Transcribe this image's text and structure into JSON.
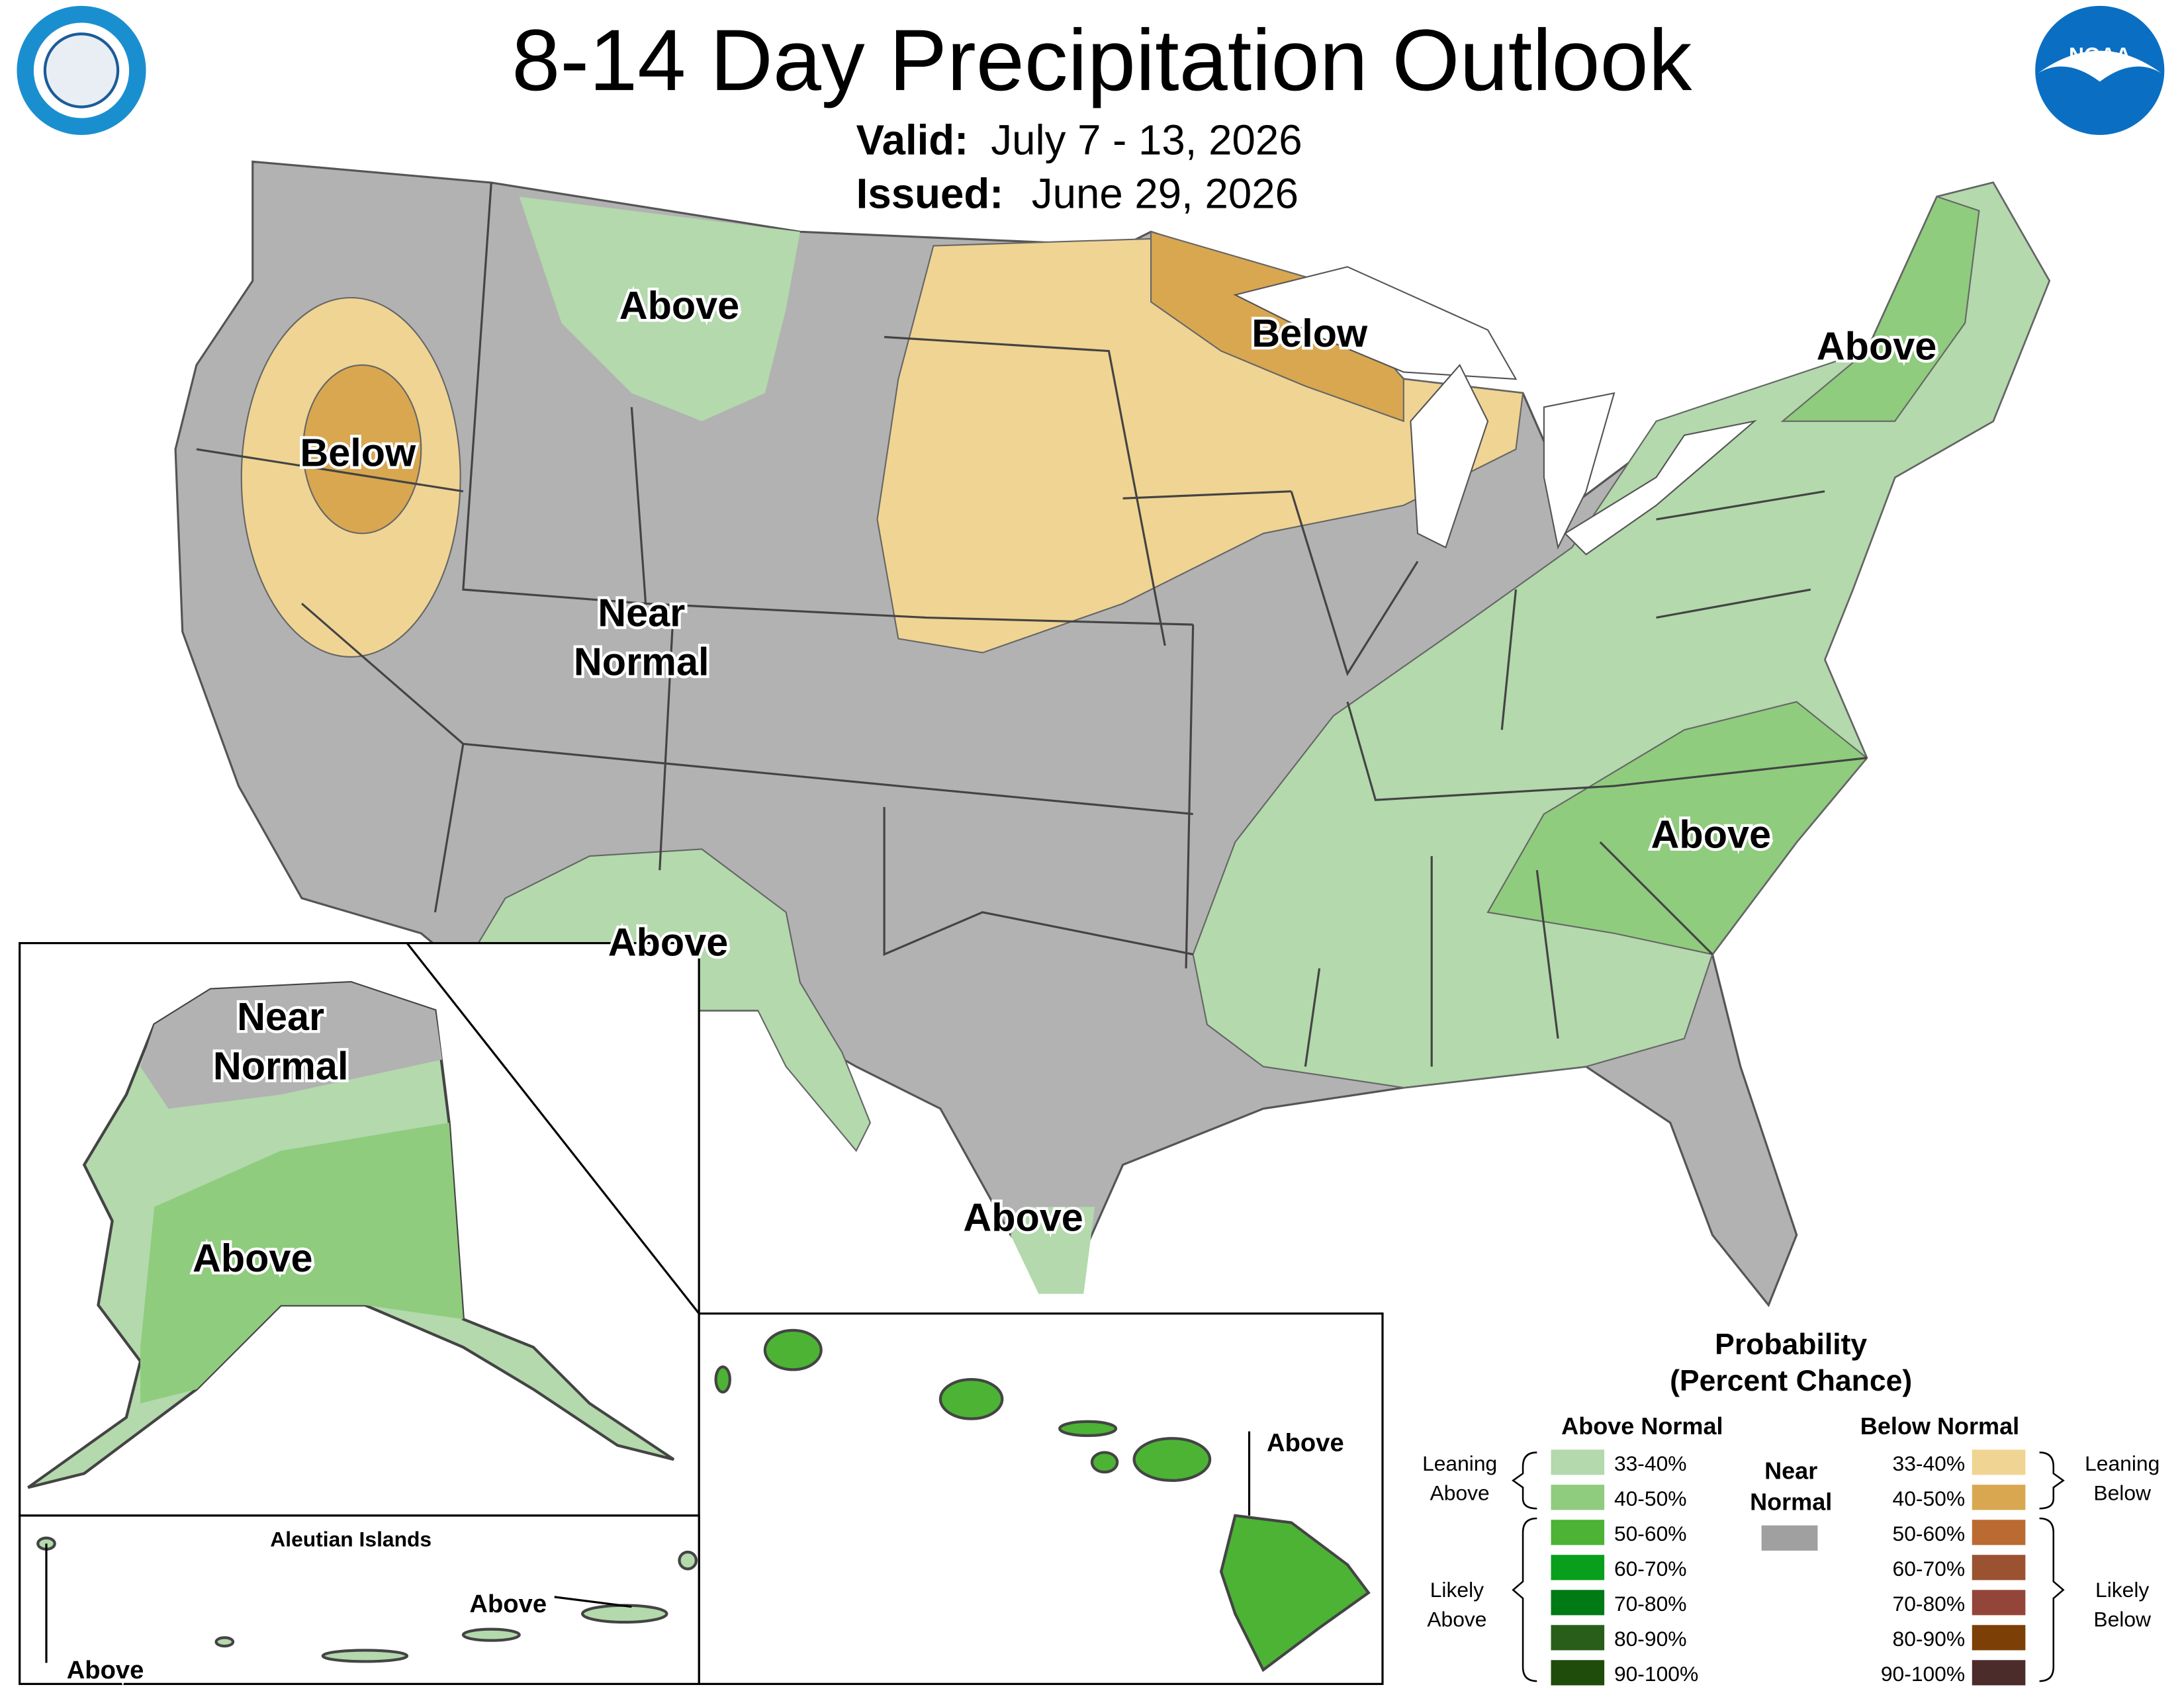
{
  "header": {
    "title": "8-14 Day Precipitation Outlook",
    "valid_label": "Valid:",
    "valid": "July 7 - 13, 2026",
    "issued_label": "Issued:",
    "issued": "June 29, 2026",
    "logo_text": "NOAA"
  },
  "map_labels": [
    [
      "Above"
    ],
    [
      "Below"
    ],
    [
      "Below"
    ],
    [
      "Above"
    ],
    [
      "Near",
      "Normal"
    ],
    [
      "Above"
    ],
    [
      "Above"
    ],
    [
      "Above"
    ],
    [
      "Near",
      "Normal"
    ],
    [
      "Above"
    ],
    [
      "Above"
    ],
    [
      "Above"
    ],
    [
      "Above"
    ]
  ],
  "inset": {
    "aleutian_title": "Aleutian Islands"
  },
  "legend": {
    "title": "Probability",
    "subtitle": "(Percent Chance)",
    "above_heading": "Above Normal",
    "below_heading": "Below Normal",
    "near_normal": [
      "Near",
      "Normal"
    ],
    "near_color": "#a0a0a0",
    "above_levels": [
      {
        "label": "33-40%",
        "color": "#b3d9ac"
      },
      {
        "label": "40-50%",
        "color": "#8fcc7e"
      },
      {
        "label": "50-60%",
        "color": "#4cb335"
      },
      {
        "label": "60-70%",
        "color": "#079f1c"
      },
      {
        "label": "70-80%",
        "color": "#007a14"
      },
      {
        "label": "80-90%",
        "color": "#285e1a"
      },
      {
        "label": "90-100%",
        "color": "#1f4c0a"
      }
    ],
    "below_levels": [
      {
        "label": "33-40%",
        "color": "#f0d493"
      },
      {
        "label": "40-50%",
        "color": "#d8a750"
      },
      {
        "label": "50-60%",
        "color": "#bb6a31"
      },
      {
        "label": "60-70%",
        "color": "#9b5230"
      },
      {
        "label": "70-80%",
        "color": "#934539"
      },
      {
        "label": "80-90%",
        "color": "#7c3f06"
      },
      {
        "label": "90-100%",
        "color": "#4c2b2b"
      }
    ],
    "leaning_above": [
      "Leaning",
      "Above"
    ],
    "likely_above": [
      "Likely",
      "Above"
    ],
    "leaning_below": [
      "Leaning",
      "Below"
    ],
    "likely_below": [
      "Likely",
      "Below"
    ]
  }
}
